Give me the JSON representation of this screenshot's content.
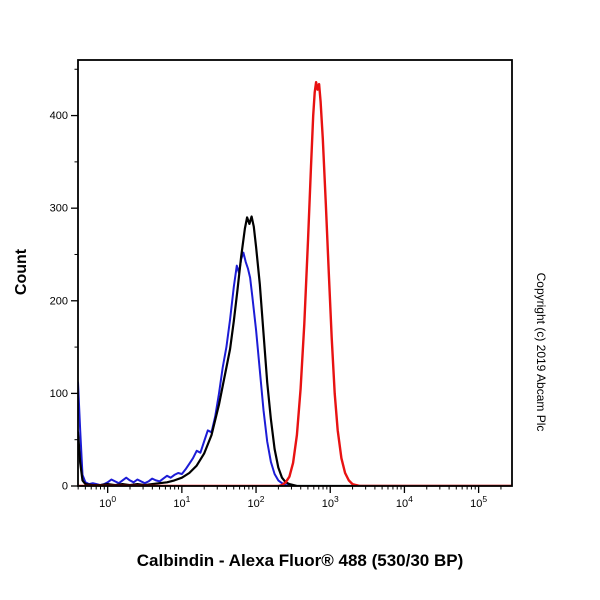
{
  "labels": {
    "y_axis": "Count",
    "copyright": "Copyright (c) 2019 Abcam Plc",
    "title": "Calbindin - Alexa Fluor® 488 (530/30 BP)"
  },
  "chart_data": {
    "type": "line",
    "subtype": "flow-cytometry-histogram",
    "title": "Calbindin - Alexa Fluor® 488 (530/30 BP)",
    "xlabel": "",
    "ylabel": "Count",
    "x_scale": "log10",
    "x_range_log10": [
      -0.4,
      5.45
    ],
    "ylim": [
      0,
      460
    ],
    "grid": false,
    "legend": "none",
    "x_major_ticks_log10": [
      0,
      1,
      2,
      3,
      4,
      5
    ],
    "x_major_tick_labels": [
      "10^0",
      "10^1",
      "10^2",
      "10^3",
      "10^4",
      "10^5"
    ],
    "y_major_ticks": [
      0,
      100,
      200,
      300,
      400
    ],
    "y_minor_ticks": [
      50,
      150,
      250,
      350,
      450
    ],
    "series": [
      {
        "name": "blue-curve",
        "color": "#1c1cd6",
        "width": 2,
        "points": [
          [
            -0.4,
            112
          ],
          [
            -0.37,
            60
          ],
          [
            -0.34,
            12
          ],
          [
            -0.3,
            4
          ],
          [
            -0.25,
            2
          ],
          [
            -0.2,
            3
          ],
          [
            -0.15,
            2
          ],
          [
            -0.1,
            1
          ],
          [
            -0.05,
            2
          ],
          [
            0.0,
            4
          ],
          [
            0.05,
            7
          ],
          [
            0.1,
            5
          ],
          [
            0.15,
            3
          ],
          [
            0.2,
            6
          ],
          [
            0.25,
            9
          ],
          [
            0.3,
            6
          ],
          [
            0.35,
            4
          ],
          [
            0.4,
            7
          ],
          [
            0.45,
            5
          ],
          [
            0.5,
            3
          ],
          [
            0.55,
            5
          ],
          [
            0.6,
            8
          ],
          [
            0.65,
            6
          ],
          [
            0.7,
            5
          ],
          [
            0.75,
            8
          ],
          [
            0.8,
            11
          ],
          [
            0.85,
            9
          ],
          [
            0.9,
            12
          ],
          [
            0.95,
            14
          ],
          [
            1.0,
            13
          ],
          [
            1.05,
            18
          ],
          [
            1.1,
            24
          ],
          [
            1.15,
            30
          ],
          [
            1.2,
            38
          ],
          [
            1.25,
            36
          ],
          [
            1.3,
            48
          ],
          [
            1.35,
            60
          ],
          [
            1.4,
            58
          ],
          [
            1.45,
            75
          ],
          [
            1.5,
            100
          ],
          [
            1.55,
            128
          ],
          [
            1.6,
            150
          ],
          [
            1.65,
            180
          ],
          [
            1.7,
            215
          ],
          [
            1.74,
            238
          ],
          [
            1.77,
            230
          ],
          [
            1.8,
            245
          ],
          [
            1.83,
            252
          ],
          [
            1.86,
            242
          ],
          [
            1.89,
            235
          ],
          [
            1.92,
            225
          ],
          [
            1.95,
            205
          ],
          [
            2.0,
            168
          ],
          [
            2.05,
            125
          ],
          [
            2.1,
            82
          ],
          [
            2.15,
            48
          ],
          [
            2.2,
            26
          ],
          [
            2.25,
            13
          ],
          [
            2.3,
            6
          ],
          [
            2.35,
            3
          ],
          [
            2.4,
            1
          ],
          [
            2.5,
            0
          ],
          [
            5.45,
            0
          ]
        ]
      },
      {
        "name": "black-curve",
        "color": "#000000",
        "width": 2.2,
        "points": [
          [
            -0.4,
            58
          ],
          [
            -0.37,
            25
          ],
          [
            -0.34,
            6
          ],
          [
            -0.3,
            2
          ],
          [
            -0.2,
            1
          ],
          [
            -0.1,
            1
          ],
          [
            0.0,
            2
          ],
          [
            0.1,
            1
          ],
          [
            0.2,
            2
          ],
          [
            0.3,
            1
          ],
          [
            0.4,
            2
          ],
          [
            0.5,
            1
          ],
          [
            0.6,
            2
          ],
          [
            0.7,
            3
          ],
          [
            0.8,
            4
          ],
          [
            0.9,
            6
          ],
          [
            1.0,
            9
          ],
          [
            1.1,
            14
          ],
          [
            1.2,
            22
          ],
          [
            1.3,
            35
          ],
          [
            1.4,
            55
          ],
          [
            1.5,
            88
          ],
          [
            1.55,
            108
          ],
          [
            1.6,
            128
          ],
          [
            1.65,
            148
          ],
          [
            1.7,
            178
          ],
          [
            1.75,
            212
          ],
          [
            1.8,
            248
          ],
          [
            1.85,
            278
          ],
          [
            1.88,
            290
          ],
          [
            1.91,
            283
          ],
          [
            1.94,
            291
          ],
          [
            1.97,
            280
          ],
          [
            2.0,
            258
          ],
          [
            2.05,
            218
          ],
          [
            2.1,
            165
          ],
          [
            2.15,
            112
          ],
          [
            2.2,
            72
          ],
          [
            2.25,
            40
          ],
          [
            2.3,
            20
          ],
          [
            2.35,
            9
          ],
          [
            2.4,
            4
          ],
          [
            2.45,
            2
          ],
          [
            2.55,
            0
          ],
          [
            5.45,
            0
          ]
        ]
      },
      {
        "name": "red-curve",
        "color": "#e81212",
        "width": 2.4,
        "points": [
          [
            -0.4,
            0
          ],
          [
            2.3,
            0
          ],
          [
            2.35,
            1
          ],
          [
            2.4,
            4
          ],
          [
            2.45,
            10
          ],
          [
            2.5,
            25
          ],
          [
            2.55,
            55
          ],
          [
            2.6,
            105
          ],
          [
            2.65,
            175
          ],
          [
            2.7,
            265
          ],
          [
            2.74,
            345
          ],
          [
            2.77,
            400
          ],
          [
            2.79,
            425
          ],
          [
            2.81,
            436
          ],
          [
            2.83,
            428
          ],
          [
            2.85,
            434
          ],
          [
            2.87,
            415
          ],
          [
            2.9,
            375
          ],
          [
            2.94,
            305
          ],
          [
            2.98,
            230
          ],
          [
            3.02,
            160
          ],
          [
            3.06,
            100
          ],
          [
            3.1,
            60
          ],
          [
            3.15,
            30
          ],
          [
            3.2,
            14
          ],
          [
            3.25,
            6
          ],
          [
            3.3,
            2
          ],
          [
            3.35,
            1
          ],
          [
            3.4,
            0
          ],
          [
            5.45,
            0
          ]
        ]
      }
    ]
  }
}
